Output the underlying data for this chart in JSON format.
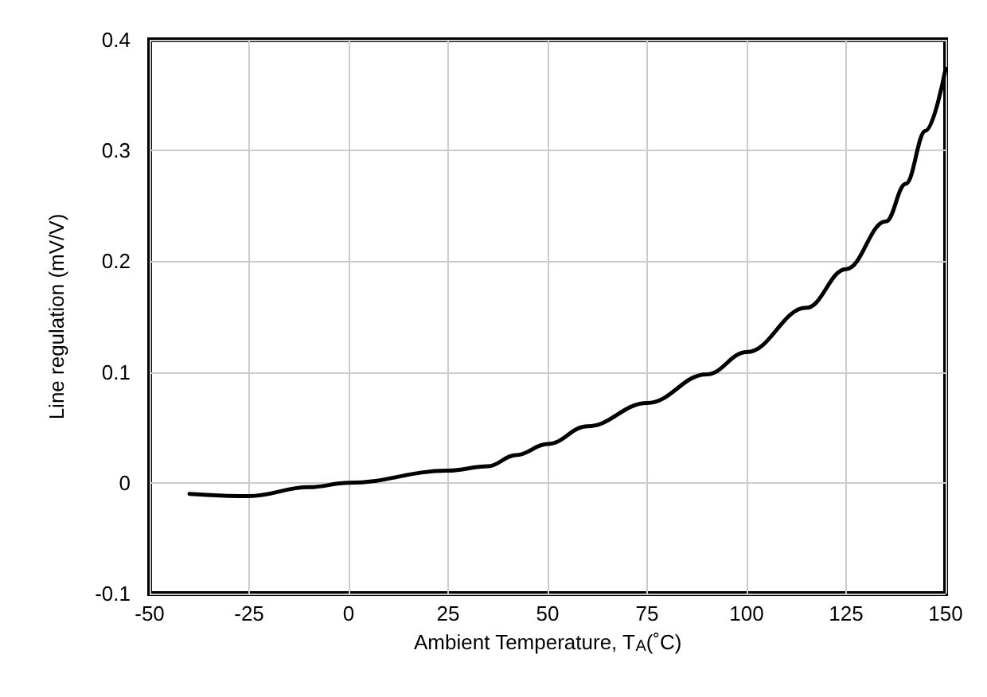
{
  "chart_data": {
    "type": "line",
    "xlabel": "Ambient Temperature, T$_{A}$(˚C)",
    "ylabel": "Line regulation (mV/V)",
    "x": [
      -40,
      -25,
      -10,
      0,
      25,
      35,
      42,
      50,
      60,
      75,
      90,
      100,
      115,
      125,
      135,
      140,
      145,
      150
    ],
    "series": [
      {
        "color": "#000000",
        "values": [
          -0.01,
          -0.012,
          -0.004,
          0,
          0.011,
          0.015,
          0.025,
          0.035,
          0.051,
          0.072,
          0.098,
          0.118,
          0.158,
          0.193,
          0.236,
          0.27,
          0.318,
          0.374
        ]
      }
    ],
    "xlim": [
      -50,
      150
    ],
    "xticks": [
      -50,
      -25,
      0,
      25,
      50,
      75,
      100,
      125,
      150
    ],
    "ylim": [
      -0.1,
      0.4
    ],
    "yticks": [
      -0.1,
      0,
      0.1,
      0.2,
      0.3,
      0.4
    ],
    "grid": true,
    "marker": "none",
    "line_style": "solid"
  }
}
